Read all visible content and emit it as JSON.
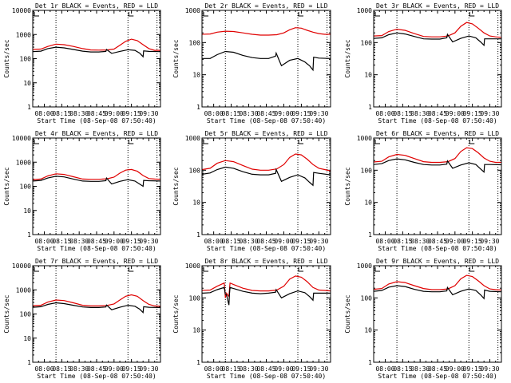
{
  "chart_data": [
    {
      "type": "line",
      "title": "Det 1r BLACK = Events, RED = LLD",
      "xlabel": "Start Time (08-Sep-08 07:50:40)",
      "ylabel": "Counts/sec",
      "yscale": "log",
      "ylim": [
        1,
        10000
      ],
      "yticks": [
        "1",
        "10",
        "100",
        "1000",
        "10000"
      ],
      "xticks": [
        "08:00",
        "08:15",
        "08:30",
        "08:45",
        "09:00",
        "09:15",
        "09:30"
      ],
      "xlim_min": [
        -10,
        100
      ],
      "vlines_min": [
        10,
        72,
        97
      ],
      "series": [
        {
          "name": "LLD",
          "color": "#e00000",
          "x": [
            -10,
            -3,
            3,
            10,
            17,
            25,
            33,
            40,
            47,
            54,
            60,
            65,
            70,
            75,
            80,
            85,
            90,
            95,
            100
          ],
          "y": [
            240,
            250,
            320,
            400,
            380,
            320,
            260,
            230,
            225,
            230,
            250,
            360,
            520,
            640,
            560,
            380,
            260,
            220,
            220
          ]
        },
        {
          "name": "Events",
          "color": "#000000",
          "x": [
            -10,
            -3,
            3,
            10,
            17,
            25,
            33,
            40,
            47,
            53,
            53.5,
            58,
            65,
            72,
            78,
            82,
            85,
            85.5,
            90,
            100
          ],
          "y": [
            195,
            205,
            260,
            300,
            280,
            240,
            205,
            190,
            190,
            200,
            240,
            165,
            200,
            235,
            220,
            170,
            120,
            210,
            200,
            195
          ]
        }
      ]
    },
    {
      "type": "line",
      "title": "Det 2r BLACK = Events, RED = LLD",
      "xlabel": "Start Time (08-Sep-08 07:50:40)",
      "ylabel": "Counts/sec",
      "yscale": "log",
      "ylim": [
        1,
        1000
      ],
      "yticks": [
        "1",
        "10",
        "100",
        "1000"
      ],
      "xticks": [
        "08:00",
        "08:15",
        "08:30",
        "08:45",
        "09:00",
        "09:15",
        "09:30"
      ],
      "xlim_min": [
        -10,
        100
      ],
      "vlines_min": [
        10,
        72,
        97
      ],
      "series": [
        {
          "name": "LLD",
          "color": "#e00000",
          "x": [
            -10,
            -3,
            3,
            10,
            17,
            25,
            33,
            40,
            47,
            54,
            60,
            65,
            70,
            75,
            80,
            85,
            90,
            95,
            100
          ],
          "y": [
            180,
            185,
            210,
            225,
            220,
            200,
            180,
            170,
            170,
            175,
            200,
            250,
            290,
            280,
            240,
            210,
            190,
            180,
            180
          ]
        },
        {
          "name": "Events",
          "color": "#000000",
          "x": [
            -10,
            -3,
            3,
            10,
            17,
            25,
            33,
            40,
            47,
            53,
            53.5,
            58,
            65,
            72,
            78,
            82,
            85,
            85.5,
            90,
            100
          ],
          "y": [
            32,
            32,
            42,
            53,
            50,
            40,
            34,
            32,
            32,
            38,
            47,
            19,
            28,
            32,
            25,
            19,
            14,
            35,
            33,
            32
          ]
        }
      ]
    },
    {
      "type": "line",
      "title": "Det 3r BLACK = Events, RED = LLD",
      "xlabel": "Start Time (08-Sep-08 07:50:40)",
      "ylabel": "Counts/sec",
      "yscale": "log",
      "ylim": [
        1,
        1000
      ],
      "yticks": [
        "1",
        "10",
        "100",
        "1000"
      ],
      "xticks": [
        "08:00",
        "08:15",
        "08:30",
        "08:45",
        "09:00",
        "09:15",
        "09:30"
      ],
      "xlim_min": [
        -10,
        100
      ],
      "vlines_min": [
        10,
        72,
        97
      ],
      "series": [
        {
          "name": "LLD",
          "color": "#e00000",
          "x": [
            -10,
            -3,
            3,
            10,
            17,
            25,
            33,
            40,
            47,
            54,
            60,
            65,
            70,
            75,
            80,
            85,
            90,
            95,
            100
          ],
          "y": [
            160,
            165,
            220,
            260,
            240,
            190,
            155,
            150,
            150,
            160,
            200,
            320,
            420,
            380,
            280,
            200,
            160,
            150,
            145
          ]
        },
        {
          "name": "Events",
          "color": "#000000",
          "x": [
            -10,
            -3,
            3,
            10,
            17,
            25,
            33,
            40,
            47,
            53,
            53.5,
            58,
            65,
            72,
            78,
            82,
            85,
            85.5,
            90,
            100
          ],
          "y": [
            135,
            140,
            175,
            200,
            185,
            155,
            130,
            128,
            128,
            140,
            180,
            105,
            135,
            160,
            140,
            105,
            82,
            130,
            130,
            130
          ]
        }
      ]
    },
    {
      "type": "line",
      "title": "Det 4r BLACK = Events, RED = LLD",
      "xlabel": "Start Time (08-Sep-08 07:50:40)",
      "ylabel": "Counts/sec",
      "yscale": "log",
      "ylim": [
        1,
        10000
      ],
      "yticks": [
        "1",
        "10",
        "100",
        "1000",
        "10000"
      ],
      "xticks": [
        "08:00",
        "08:15",
        "08:30",
        "08:45",
        "09:00",
        "09:15",
        "09:30"
      ],
      "xlim_min": [
        -10,
        100
      ],
      "vlines_min": [
        10,
        72,
        97
      ],
      "series": [
        {
          "name": "LLD",
          "color": "#e00000",
          "x": [
            -10,
            -3,
            3,
            10,
            17,
            25,
            33,
            40,
            47,
            54,
            60,
            65,
            70,
            75,
            80,
            85,
            90,
            95,
            100
          ],
          "y": [
            190,
            200,
            270,
            330,
            310,
            250,
            200,
            195,
            195,
            205,
            240,
            350,
            470,
            500,
            420,
            280,
            210,
            200,
            195
          ]
        },
        {
          "name": "Events",
          "color": "#000000",
          "x": [
            -10,
            -3,
            3,
            10,
            17,
            25,
            33,
            40,
            47,
            53,
            53.5,
            58,
            65,
            72,
            78,
            82,
            85,
            85.5,
            90,
            100
          ],
          "y": [
            165,
            175,
            220,
            260,
            245,
            200,
            165,
            160,
            160,
            170,
            220,
            125,
            160,
            190,
            165,
            125,
            100,
            175,
            170,
            165
          ]
        }
      ]
    },
    {
      "type": "line",
      "title": "Det 5r BLACK = Events, RED = LLD",
      "xlabel": "Start Time (08-Sep-08 07:50:40)",
      "ylabel": "Counts/sec",
      "yscale": "log",
      "ylim": [
        1,
        1000
      ],
      "yticks": [
        "1",
        "10",
        "100",
        "1000"
      ],
      "xticks": [
        "08:00",
        "08:15",
        "08:30",
        "08:45",
        "09:00",
        "09:15",
        "09:30"
      ],
      "xlim_min": [
        -10,
        100
      ],
      "vlines_min": [
        10,
        72,
        97
      ],
      "series": [
        {
          "name": "LLD",
          "color": "#e00000",
          "x": [
            -10,
            -3,
            3,
            10,
            17,
            25,
            33,
            40,
            47,
            54,
            60,
            65,
            70,
            75,
            80,
            85,
            90,
            95,
            100
          ],
          "y": [
            105,
            115,
            165,
            200,
            185,
            140,
            108,
            100,
            100,
            110,
            150,
            250,
            320,
            300,
            220,
            150,
            115,
            105,
            95
          ]
        },
        {
          "name": "Events",
          "color": "#000000",
          "x": [
            -10,
            -3,
            3,
            10,
            17,
            25,
            33,
            40,
            47,
            53,
            53.5,
            58,
            65,
            72,
            78,
            82,
            85,
            85.5,
            90,
            100
          ],
          "y": [
            75,
            82,
            105,
            125,
            115,
            90,
            75,
            72,
            72,
            80,
            105,
            45,
            60,
            72,
            58,
            42,
            34,
            85,
            80,
            72
          ]
        }
      ]
    },
    {
      "type": "line",
      "title": "Det 6r BLACK = Events, RED = LLD",
      "xlabel": "Start Time (08-Sep-08 07:50:40)",
      "ylabel": "Counts/sec",
      "yscale": "log",
      "ylim": [
        1,
        1000
      ],
      "yticks": [
        "1",
        "10",
        "100",
        "1000"
      ],
      "xticks": [
        "08:00",
        "08:15",
        "08:30",
        "08:45",
        "09:00",
        "09:15",
        "09:30"
      ],
      "xlim_min": [
        -10,
        100
      ],
      "vlines_min": [
        10,
        72,
        97
      ],
      "series": [
        {
          "name": "LLD",
          "color": "#e00000",
          "x": [
            -10,
            -3,
            3,
            10,
            17,
            25,
            33,
            40,
            47,
            54,
            60,
            65,
            70,
            75,
            80,
            85,
            90,
            95,
            100
          ],
          "y": [
            180,
            190,
            260,
            310,
            290,
            230,
            185,
            175,
            175,
            185,
            230,
            380,
            500,
            470,
            350,
            240,
            190,
            175,
            175
          ]
        },
        {
          "name": "Events",
          "color": "#000000",
          "x": [
            -10,
            -3,
            3,
            10,
            17,
            25,
            33,
            40,
            47,
            53,
            53.5,
            58,
            65,
            72,
            78,
            82,
            85,
            85.5,
            90,
            100
          ],
          "y": [
            150,
            160,
            200,
            225,
            210,
            175,
            150,
            145,
            145,
            155,
            195,
            115,
            145,
            170,
            150,
            110,
            88,
            150,
            150,
            148
          ]
        }
      ]
    },
    {
      "type": "line",
      "title": "Det 7r BLACK = Events, RED = LLD",
      "xlabel": "Start Time (08-Sep-08 07:50:40)",
      "ylabel": "Counts/sec",
      "yscale": "log",
      "ylim": [
        1,
        10000
      ],
      "yticks": [
        "1",
        "10",
        "100",
        "1000",
        "10000"
      ],
      "xticks": [
        "08:00",
        "08:15",
        "08:30",
        "08:45",
        "09:00",
        "09:15",
        "09:30"
      ],
      "xlim_min": [
        -10,
        100
      ],
      "vlines_min": [
        10,
        72,
        97
      ],
      "series": [
        {
          "name": "LLD",
          "color": "#e00000",
          "x": [
            -10,
            -3,
            3,
            10,
            17,
            25,
            33,
            40,
            47,
            54,
            60,
            65,
            70,
            75,
            80,
            85,
            90,
            95,
            100
          ],
          "y": [
            220,
            230,
            310,
            380,
            360,
            290,
            230,
            215,
            215,
            225,
            260,
            380,
            540,
            620,
            540,
            360,
            250,
            215,
            210
          ]
        },
        {
          "name": "Events",
          "color": "#000000",
          "x": [
            -10,
            -3,
            3,
            10,
            17,
            25,
            33,
            40,
            47,
            53,
            53.5,
            58,
            65,
            72,
            78,
            82,
            85,
            85.5,
            90,
            100
          ],
          "y": [
            190,
            200,
            250,
            290,
            270,
            230,
            195,
            185,
            185,
            195,
            235,
            150,
            190,
            230,
            210,
            160,
            115,
            200,
            190,
            185
          ]
        }
      ]
    },
    {
      "type": "line",
      "title": "Det 8r BLACK = Events, RED = LLD",
      "xlabel": "Start Time (08-Sep-08 07:50:40)",
      "ylabel": "Counts/sec",
      "yscale": "log",
      "ylim": [
        1,
        1000
      ],
      "yticks": [
        "1",
        "10",
        "100",
        "1000"
      ],
      "xticks": [
        "08:00",
        "08:15",
        "08:30",
        "08:45",
        "09:00",
        "09:15",
        "09:30"
      ],
      "xlim_min": [
        -10,
        100
      ],
      "vlines_min": [
        10,
        72,
        97
      ],
      "series": [
        {
          "name": "LLD",
          "color": "#e00000",
          "x": [
            -10,
            -3,
            3,
            9,
            10,
            11,
            13,
            14,
            17,
            25,
            33,
            40,
            47,
            54,
            60,
            65,
            70,
            75,
            80,
            85,
            90,
            95,
            100
          ],
          "y": [
            170,
            175,
            230,
            290,
            100,
            140,
            110,
            290,
            260,
            200,
            170,
            165,
            165,
            175,
            230,
            380,
            480,
            440,
            320,
            210,
            175,
            170,
            165
          ]
        },
        {
          "name": "Events",
          "color": "#000000",
          "x": [
            -10,
            -3,
            3,
            9,
            10,
            11,
            13,
            13.5,
            14,
            17,
            25,
            33,
            40,
            47,
            53,
            53.5,
            58,
            65,
            72,
            78,
            82,
            85,
            85.5,
            90,
            100
          ],
          "y": [
            140,
            145,
            180,
            210,
            130,
            125,
            60,
            130,
            210,
            195,
            160,
            140,
            135,
            140,
            150,
            180,
            100,
            135,
            165,
            145,
            110,
            85,
            140,
            140,
            140
          ]
        }
      ]
    },
    {
      "type": "line",
      "title": "Det 9r BLACK = Events, RED = LLD",
      "xlabel": "Start Time (08-Sep-08 07:50:40)",
      "ylabel": "Counts/sec",
      "yscale": "log",
      "ylim": [
        1,
        1000
      ],
      "yticks": [
        "1",
        "10",
        "100",
        "1000"
      ],
      "xticks": [
        "08:00",
        "08:15",
        "08:30",
        "08:45",
        "09:00",
        "09:15",
        "09:30"
      ],
      "xlim_min": [
        -10,
        100
      ],
      "vlines_min": [
        10,
        72,
        97
      ],
      "series": [
        {
          "name": "LLD",
          "color": "#e00000",
          "x": [
            -10,
            -3,
            3,
            10,
            17,
            25,
            33,
            40,
            47,
            54,
            60,
            65,
            70,
            75,
            80,
            85,
            90,
            95,
            100
          ],
          "y": [
            185,
            195,
            270,
            320,
            300,
            240,
            195,
            180,
            180,
            190,
            240,
            390,
            500,
            460,
            340,
            240,
            190,
            180,
            175
          ]
        },
        {
          "name": "Events",
          "color": "#000000",
          "x": [
            -10,
            -3,
            3,
            10,
            17,
            25,
            33,
            40,
            47,
            53,
            53.5,
            58,
            65,
            72,
            78,
            82,
            85,
            85.5,
            90,
            100
          ],
          "y": [
            160,
            170,
            215,
            240,
            225,
            185,
            160,
            155,
            155,
            165,
            210,
            125,
            160,
            190,
            170,
            125,
            95,
            175,
            160,
            155
          ]
        }
      ]
    }
  ]
}
